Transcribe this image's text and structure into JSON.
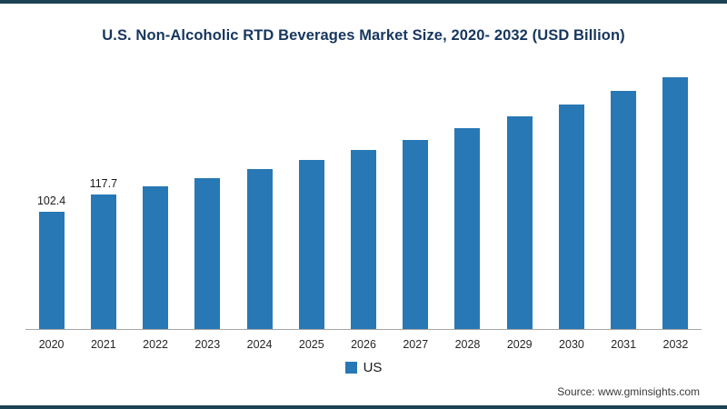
{
  "colors": {
    "accent": "#1b4353",
    "bar": "#2878b5",
    "title": "#17365d",
    "axis_line": "#a6a6a6"
  },
  "chart_data": {
    "type": "bar",
    "title": "U.S. Non-Alcoholic RTD Beverages Market Size, 2020- 2032 (USD Billion)",
    "categories": [
      "2020",
      "2021",
      "2022",
      "2023",
      "2024",
      "2025",
      "2026",
      "2027",
      "2028",
      "2029",
      "2030",
      "2031",
      "2032"
    ],
    "series": [
      {
        "name": "US",
        "values": [
          102.4,
          117.7,
          124.5,
          131.8,
          139.5,
          147.6,
          156.2,
          165.3,
          175.0,
          185.2,
          196.0,
          207.4,
          219.5
        ],
        "data_labels": [
          "102.4",
          "117.7",
          "",
          "",
          "",
          "",
          "",
          "",
          "",
          "",
          "",
          "",
          ""
        ]
      }
    ],
    "xlabel": "",
    "ylabel": "",
    "ylim": [
      0,
      230
    ],
    "grid": false,
    "legend_position": "bottom"
  },
  "legend": {
    "label": "US"
  },
  "source": {
    "text": "Source: www.gminsights.com"
  }
}
